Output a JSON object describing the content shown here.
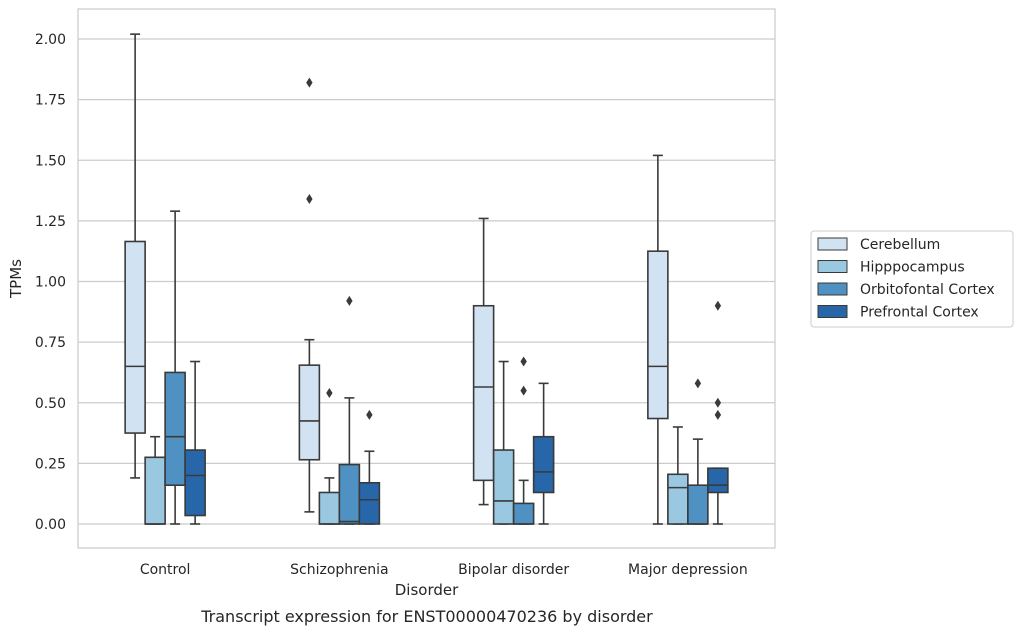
{
  "caption": "Transcript expression for ENST00000470236 by disorder",
  "chart_data": {
    "type": "box",
    "xlabel": "Disorder",
    "ylabel": "TPMs",
    "ylim": [
      -0.1,
      2.12
    ],
    "yticks": [
      "0.00",
      "0.25",
      "0.50",
      "0.75",
      "1.00",
      "1.25",
      "1.50",
      "1.75",
      "2.00"
    ],
    "categories": [
      "Control",
      "Schizophrenia",
      "Bipolar disorder",
      "Major depression"
    ],
    "grid": "horizontal",
    "legend_position": "right",
    "series": [
      {
        "name": "Cerebellum",
        "color": "#d1e2f2",
        "boxes": [
          {
            "whisker_low": 0.19,
            "q1": 0.375,
            "median": 0.65,
            "q3": 1.165,
            "whisker_high": 2.02,
            "outliers": []
          },
          {
            "whisker_low": 0.05,
            "q1": 0.265,
            "median": 0.425,
            "q3": 0.655,
            "whisker_high": 0.76,
            "outliers": [
              1.34,
              1.82
            ]
          },
          {
            "whisker_low": 0.08,
            "q1": 0.18,
            "median": 0.565,
            "q3": 0.9,
            "whisker_high": 1.26,
            "outliers": []
          },
          {
            "whisker_low": 0.0,
            "q1": 0.435,
            "median": 0.65,
            "q3": 1.125,
            "whisker_high": 1.52,
            "outliers": []
          }
        ]
      },
      {
        "name": "Hipppocampus",
        "color": "#9ac8e0",
        "boxes": [
          {
            "whisker_low": 0.0,
            "q1": 0.0,
            "median": 0.0,
            "q3": 0.275,
            "whisker_high": 0.36,
            "outliers": []
          },
          {
            "whisker_low": 0.0,
            "q1": 0.0,
            "median": 0.0,
            "q3": 0.13,
            "whisker_high": 0.19,
            "outliers": [
              0.54
            ]
          },
          {
            "whisker_low": 0.0,
            "q1": 0.0,
            "median": 0.095,
            "q3": 0.305,
            "whisker_high": 0.67,
            "outliers": []
          },
          {
            "whisker_low": 0.0,
            "q1": 0.0,
            "median": 0.15,
            "q3": 0.205,
            "whisker_high": 0.4,
            "outliers": []
          }
        ]
      },
      {
        "name": "Orbitofontal Cortex",
        "color": "#4f91c3",
        "boxes": [
          {
            "whisker_low": 0.0,
            "q1": 0.16,
            "median": 0.36,
            "q3": 0.625,
            "whisker_high": 1.29,
            "outliers": []
          },
          {
            "whisker_low": 0.0,
            "q1": 0.0,
            "median": 0.01,
            "q3": 0.245,
            "whisker_high": 0.52,
            "outliers": [
              0.92
            ]
          },
          {
            "whisker_low": 0.0,
            "q1": 0.0,
            "median": 0.0,
            "q3": 0.085,
            "whisker_high": 0.18,
            "outliers": [
              0.55,
              0.67
            ]
          },
          {
            "whisker_low": 0.0,
            "q1": 0.0,
            "median": 0.0,
            "q3": 0.16,
            "whisker_high": 0.35,
            "outliers": [
              0.58
            ]
          }
        ]
      },
      {
        "name": "Prefrontal Cortex",
        "color": "#2766a8",
        "boxes": [
          {
            "whisker_low": 0.0,
            "q1": 0.035,
            "median": 0.2,
            "q3": 0.305,
            "whisker_high": 0.67,
            "outliers": []
          },
          {
            "whisker_low": 0.0,
            "q1": 0.0,
            "median": 0.1,
            "q3": 0.17,
            "whisker_high": 0.3,
            "outliers": [
              0.45
            ]
          },
          {
            "whisker_low": 0.0,
            "q1": 0.13,
            "median": 0.215,
            "q3": 0.36,
            "whisker_high": 0.58,
            "outliers": []
          },
          {
            "whisker_low": 0.0,
            "q1": 0.13,
            "median": 0.16,
            "q3": 0.23,
            "whisker_high": 0.23,
            "outliers": [
              0.45,
              0.5,
              0.9
            ]
          }
        ]
      }
    ]
  }
}
